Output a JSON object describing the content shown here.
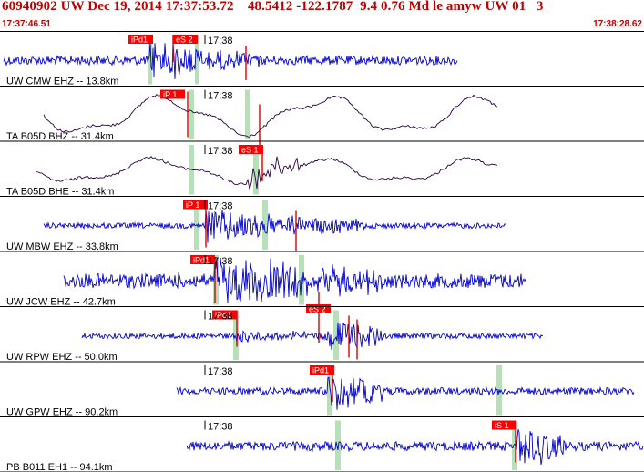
{
  "header": {
    "title": "60940902 UW Dec 19, 2014 17:37:53.72    48.5412 -122.1787  9.4 0.76 Md le amyw UW 01   3",
    "start_time": "17:37:46.51",
    "end_time": "17:38:28.62"
  },
  "colors": {
    "header_text": "#c00000",
    "trace_blue": "#0000cc",
    "trace_dark": "#2a0040",
    "pick_box": "#ff0000",
    "pick_line": "#dd0000",
    "window": "#b8e0b8",
    "divider": "#000000"
  },
  "traces": [
    {
      "label": "UW CMW EHZ -- 13.8km",
      "time_label": "17:38",
      "color": "trace_blue",
      "picks": [
        {
          "label": "iPd1"
        },
        {
          "label": "eS 2"
        }
      ]
    },
    {
      "label": "TA B05D BHZ -- 31.4km",
      "time_label": "17:38",
      "color": "trace_dark",
      "picks": [
        {
          "label": "iP 1"
        }
      ]
    },
    {
      "label": "TA B05D BHE -- 31.4km",
      "time_label": "17:38",
      "color": "trace_dark",
      "picks": [
        {
          "label": "eS 1"
        }
      ]
    },
    {
      "label": "UW MBW EHZ -- 33.8km",
      "time_label": "17:38",
      "color": "trace_blue",
      "picks": [
        {
          "label": "iP 1"
        }
      ]
    },
    {
      "label": "UW JCW EHZ -- 42.7km",
      "time_label": "17:38",
      "color": "trace_blue",
      "picks": [
        {
          "label": "iPd1"
        },
        {
          "label": "eS 2"
        }
      ]
    },
    {
      "label": "UW RPW EHZ -- 50.0km",
      "time_label": "17:38",
      "color": "trace_blue",
      "picks": [
        {
          "label": "iPd1"
        }
      ]
    },
    {
      "label": "UW GPW EHZ -- 90.2km",
      "time_label": "17:38",
      "color": "trace_blue",
      "picks": [
        {
          "label": "iPd1"
        }
      ]
    },
    {
      "label": "PB B011 EH1 -- 94.1km",
      "time_label": "17:38",
      "color": "trace_blue",
      "picks": [
        {
          "label": "iS 1"
        }
      ]
    }
  ]
}
